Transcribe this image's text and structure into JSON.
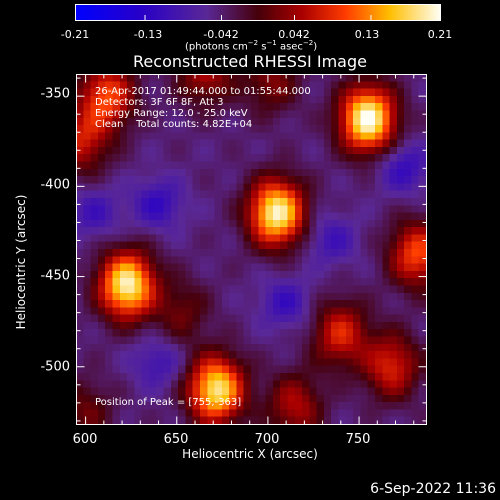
{
  "chart_data": {
    "type": "heatmap",
    "title": "Reconstructed RHESSI Image",
    "xlabel": "Heliocentric X (arcsec)",
    "ylabel": "Heliocentric Y (arcsec)",
    "xlim": [
      595,
      787
    ],
    "ylim": [
      -532,
      -338
    ],
    "x_ticks": [
      "600",
      "650",
      "700",
      "750"
    ],
    "x_tick_values": [
      600,
      650,
      700,
      750
    ],
    "y_ticks": [
      "-350",
      "-400",
      "-450",
      "-500"
    ],
    "y_tick_values": [
      -350,
      -400,
      -450,
      -500
    ],
    "colorbar": {
      "ticks": [
        "-0.21",
        "-0.13",
        "-0.042",
        "0.042",
        "0.13",
        "0.21"
      ],
      "tick_values": [
        -0.21,
        -0.13,
        -0.042,
        0.042,
        0.13,
        0.21
      ],
      "range": [
        -0.21,
        0.21
      ],
      "units_label": "(photons cm",
      "colormap": "blue-purple-red-orange-yellow-white"
    },
    "info": {
      "line1": "26-Apr-2017 01:49:44.000 to 01:55:44.000",
      "line2": "Detectors: 3F 6F 8F, Att 3",
      "line3": "Energy Range: 12.0 - 25.0 keV",
      "line4": "Clean    Total counts: 4.82E+04"
    },
    "peak_label": "Position of Peak = [755,-363]",
    "sources": [
      {
        "x": 755,
        "y": -363,
        "peak": 0.21
      },
      {
        "x": 705,
        "y": -415,
        "peak": 0.2
      },
      {
        "x": 623,
        "y": -455,
        "peak": 0.2
      },
      {
        "x": 672,
        "y": -513,
        "peak": 0.19
      },
      {
        "x": 782,
        "y": -438,
        "peak": 0.12
      },
      {
        "x": 768,
        "y": -500,
        "peak": 0.1
      },
      {
        "x": 740,
        "y": -482,
        "peak": 0.1
      },
      {
        "x": 612,
        "y": -350,
        "peak": 0.12
      },
      {
        "x": 598,
        "y": -375,
        "peak": 0.09
      },
      {
        "x": 666,
        "y": -337,
        "peak": 0.08
      },
      {
        "x": 702,
        "y": -342,
        "peak": 0.06
      },
      {
        "x": 715,
        "y": -522,
        "peak": 0.08
      },
      {
        "x": 600,
        "y": -525,
        "peak": 0.05
      },
      {
        "x": 653,
        "y": -470,
        "peak": 0.05
      }
    ],
    "negative_regions": [
      {
        "x": 640,
        "y": -410,
        "depth": -0.1
      },
      {
        "x": 710,
        "y": -465,
        "depth": -0.09
      },
      {
        "x": 640,
        "y": -498,
        "depth": -0.08
      },
      {
        "x": 775,
        "y": -390,
        "depth": -0.1
      },
      {
        "x": 735,
        "y": -430,
        "depth": -0.08
      },
      {
        "x": 605,
        "y": -415,
        "depth": -0.08
      }
    ]
  },
  "timestamp": "6-Sep-2022 11:36"
}
